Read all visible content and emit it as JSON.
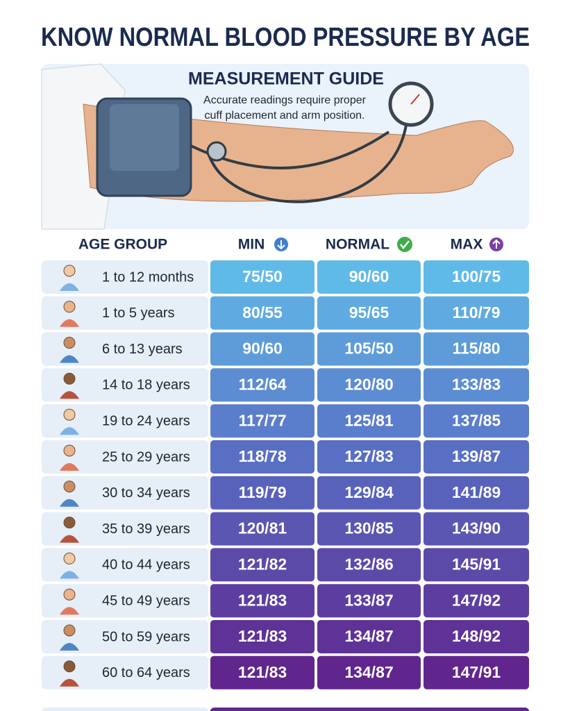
{
  "header": {
    "title": "KNOW NORMAL BLOOD PRESSURE BY AGE"
  },
  "guide": {
    "title": "MEASUREMENT GUIDE",
    "text_lines": [
      "Accurate readings require proper",
      "cuff placement and arm position."
    ]
  },
  "table": {
    "columns": [
      "AGE GROUP",
      "MIN",
      "NORMAL",
      "MAX"
    ],
    "rows": [
      [
        "1 to 12 months",
        "75/50",
        "90/60",
        "100/75"
      ],
      [
        "1 to 5 years",
        "80/55",
        "95/65",
        "110/79"
      ],
      [
        "6 to 13 years",
        "90/60",
        "105/50",
        "115/80"
      ],
      [
        "14 to 18 years",
        "112/64",
        "120/80",
        "133/83"
      ],
      [
        "19 to 24 years",
        "117/77",
        "125/81",
        "137/85"
      ],
      [
        "25 to 29 years",
        "118/78",
        "127/83",
        "139/87"
      ],
      [
        "30 to 34 years",
        "119/79",
        "129/84",
        "141/89"
      ],
      [
        "35 to 39 years",
        "120/81",
        "130/85",
        "143/90"
      ],
      [
        "40 to 44 years",
        "121/82",
        "132/86",
        "145/91"
      ],
      [
        "45 to 49 years",
        "121/83",
        "133/87",
        "147/92"
      ],
      [
        "50 to 59 years",
        "121/83",
        "134/87",
        "148/92"
      ],
      [
        "60 to 64 years",
        "121/83",
        "134/87",
        "147/91"
      ]
    ]
  }
}
